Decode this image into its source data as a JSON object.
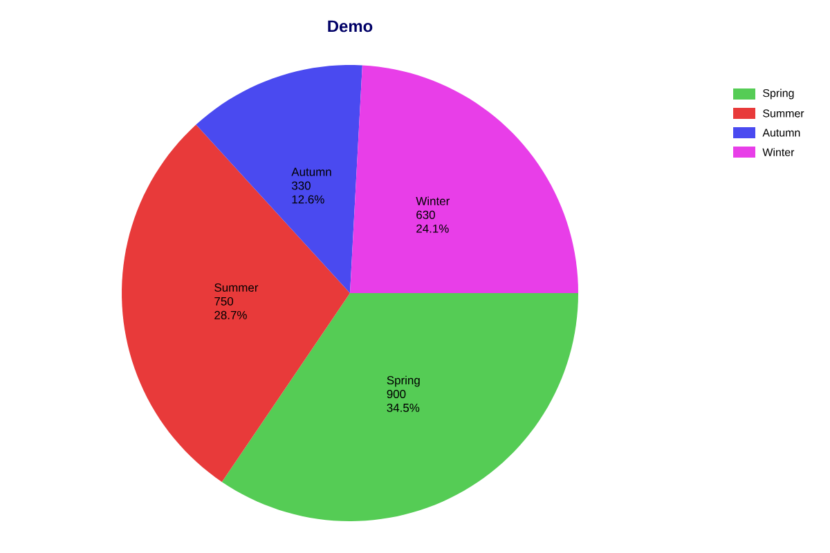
{
  "chart_data": {
    "type": "pie",
    "title": "Demo",
    "categories": [
      "Spring",
      "Summer",
      "Autumn",
      "Winter"
    ],
    "values": [
      900,
      750,
      330,
      630
    ],
    "value_labels": [
      "900",
      "750",
      "330",
      "630"
    ],
    "annotations": [
      {
        "text": "34.5%",
        "x": "Spring"
      },
      {
        "text": "28.7%",
        "x": "Summer"
      },
      {
        "text": "12.6%",
        "x": "Autumn"
      },
      {
        "text": "24.1%",
        "x": "Winter"
      }
    ],
    "colors": [
      "#55cc55",
      "#e83a3a",
      "#4a4af0",
      "#e83ee8"
    ],
    "data_labels": true,
    "legend": "top right"
  }
}
